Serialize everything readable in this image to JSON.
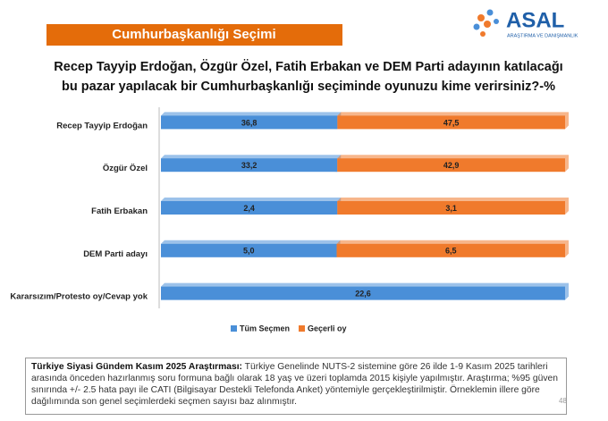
{
  "header": {
    "title": "Cumhurbaşkanlığı Seçimi",
    "logo": "ASAL",
    "logo_subtitle": "ARAŞTIRMA VE DANIŞMANLIK"
  },
  "chart_data": {
    "type": "bar",
    "orientation": "horizontal",
    "stacking": "percent",
    "title": [
      "Recep Tayyip Erdoğan, Özgür Özel, Fatih Erbakan ve DEM Parti adayının katılacağı",
      "bu pazar yapılacak bir Cumhurbaşkanlığı seçiminde oyunuzu kime verirsiniz?-%"
    ],
    "categories": [
      "Recep Tayyip Erdoğan",
      "Özgür Özel",
      "Fatih Erbakan",
      "DEM Parti adayı",
      "Kararsızım/Protesto oy/Cevap yok"
    ],
    "series": [
      {
        "name": "Tüm Seçmen",
        "color": "#4a8fd8",
        "values": [
          36.8,
          33.2,
          2.4,
          5.0,
          22.6
        ],
        "value_labels": [
          "36,8",
          "33,2",
          "2,4",
          "5,0",
          "22,6"
        ]
      },
      {
        "name": "Geçerli oy",
        "color": "#f07a2c",
        "values": [
          47.5,
          42.9,
          3.1,
          6.5,
          null
        ],
        "value_labels": [
          "47,5",
          "42,9",
          "3,1",
          "6,5",
          null
        ]
      }
    ],
    "legend": "bottom"
  },
  "footer": {
    "lead": "Türkiye Siyasi Gündem Kasım 2025 Araştırması:",
    "text": "Türkiye Genelinde NUTS-2 sistemine göre 26 ilde 1-9 Kasım 2025 tarihleri arasında önceden hazırlanmış soru formuna bağlı olarak 18 yaş ve üzeri toplamda 2015 kişiyle yapılmıştır. Araştırma; %95 güven sınırında +/- 2.5 hata payı ile CATI (Bilgisayar Destekli Telefonda Anket) yöntemiyle gerçekleştirilmiştir. Örneklemin illere göre dağılımında son genel seçimlerdeki seçmen sayısı baz alınmıştır.",
    "page": "48"
  }
}
